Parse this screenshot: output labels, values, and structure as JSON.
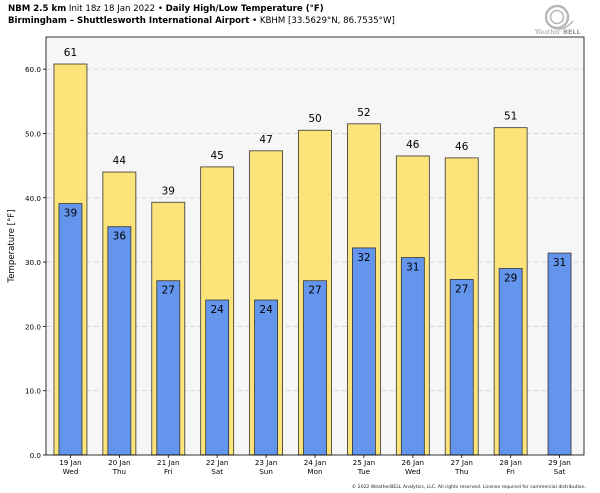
{
  "header": {
    "model": "NBM 2.5 km",
    "init": "Init 18z 18 Jan 2022",
    "bullet": "•",
    "product": "Daily High/Low Temperature (°F)",
    "station": "Birmingham – Shuttlesworth International Airport",
    "station_code": "KBHM [33.5629°N, 86.7535°W]"
  },
  "logo": {
    "text_a": "Weather",
    "text_b": "BELL"
  },
  "copyright": "© 2022 WeatherBELL Analytics, LLC. All rights reserved. License required for commercial distribution.",
  "chart_data": {
    "type": "bar",
    "title": "Daily High/Low Temperature (°F)",
    "ylabel": "Temperature [°F]",
    "xlabel": "",
    "ylim": [
      0,
      65
    ],
    "yticks": [
      "0.0",
      "10.0",
      "20.0",
      "30.0",
      "40.0",
      "50.0",
      "60.0"
    ],
    "ytick_values": [
      0,
      10,
      20,
      30,
      40,
      50,
      60
    ],
    "grid": true,
    "categories": [
      {
        "date": "19 Jan",
        "day": "Wed"
      },
      {
        "date": "20 Jan",
        "day": "Thu"
      },
      {
        "date": "21 Jan",
        "day": "Fri"
      },
      {
        "date": "22 Jan",
        "day": "Sat"
      },
      {
        "date": "23 Jan",
        "day": "Sun"
      },
      {
        "date": "24 Jan",
        "day": "Mon"
      },
      {
        "date": "25 Jan",
        "day": "Tue"
      },
      {
        "date": "26 Jan",
        "day": "Wed"
      },
      {
        "date": "27 Jan",
        "day": "Thu"
      },
      {
        "date": "28 Jan",
        "day": "Fri"
      },
      {
        "date": "29 Jan",
        "day": "Sat"
      }
    ],
    "series": [
      {
        "name": "High",
        "color": "#fde47a",
        "values": [
          60.8,
          44.0,
          39.3,
          44.8,
          47.3,
          50.5,
          51.5,
          46.5,
          46.2,
          50.9,
          null
        ],
        "labels": [
          "61",
          "44",
          "39",
          "45",
          "47",
          "50",
          "52",
          "46",
          "46",
          "51",
          null
        ]
      },
      {
        "name": "Low",
        "color": "#6495ed",
        "values": [
          39.1,
          35.5,
          27.1,
          24.1,
          24.1,
          27.1,
          32.2,
          30.7,
          27.3,
          29.0,
          31.4
        ],
        "labels": [
          "39",
          "36",
          "27",
          "24",
          "24",
          "27",
          "32",
          "31",
          "27",
          "29",
          "31"
        ]
      }
    ],
    "colors": {
      "plot_bg": "#f6f6f6",
      "grid": "#d3d3d3",
      "edge": "#333333"
    }
  }
}
